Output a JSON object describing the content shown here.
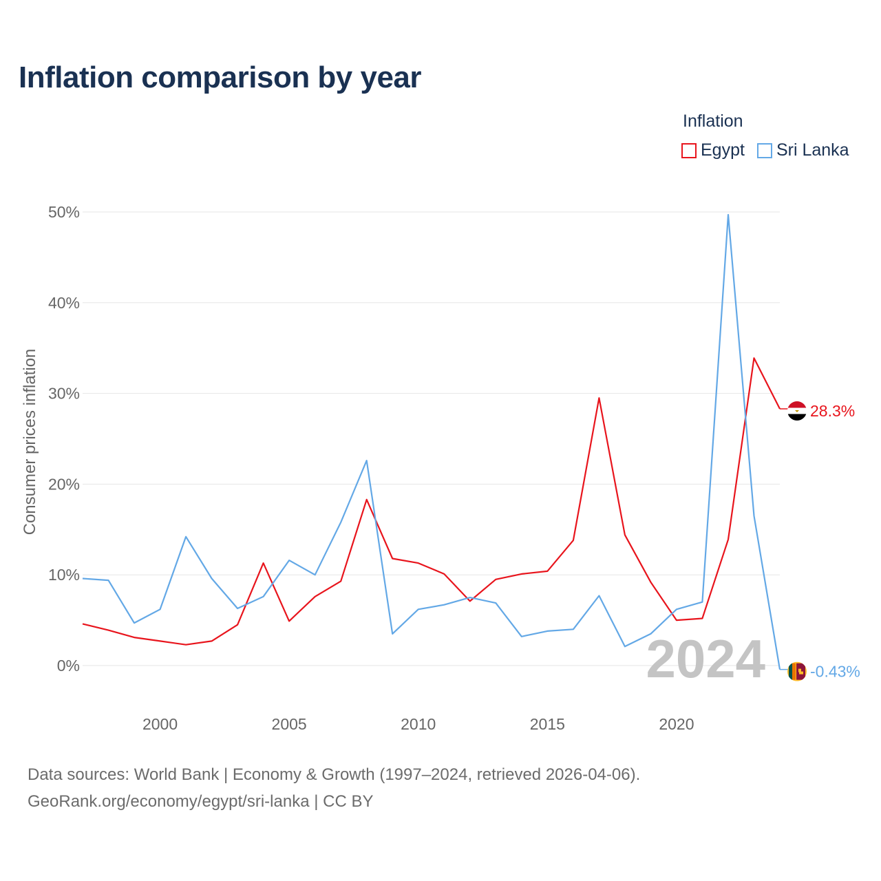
{
  "title": "Inflation comparison by year",
  "legend": {
    "title": "Inflation",
    "items": [
      {
        "name": "Egypt",
        "color": "#e8141c"
      },
      {
        "name": "Sri Lanka",
        "color": "#63a8e6"
      }
    ]
  },
  "footer": {
    "line1": "Data sources: World Bank | Economy & Growth (1997–2024, retrieved 2026-04-06).",
    "line2": "GeoRank.org/economy/egypt/sri-lanka | CC BY"
  },
  "chart_data": {
    "type": "line",
    "title": "Inflation comparison by year",
    "xlabel": "",
    "ylabel": "Consumer prices inflation",
    "xlim": [
      1997,
      2024
    ],
    "ylim": [
      0,
      50
    ],
    "x_ticks": [
      2000,
      2005,
      2010,
      2015,
      2020
    ],
    "y_ticks": [
      0,
      10,
      20,
      30,
      40,
      50
    ],
    "y_tick_labels": [
      "0%",
      "10%",
      "20%",
      "30%",
      "40%",
      "50%"
    ],
    "grid": true,
    "watermark_year": "2024",
    "x": [
      1997,
      1998,
      1999,
      2000,
      2001,
      2002,
      2003,
      2004,
      2005,
      2006,
      2007,
      2008,
      2009,
      2010,
      2011,
      2012,
      2013,
      2014,
      2015,
      2016,
      2017,
      2018,
      2019,
      2020,
      2021,
      2022,
      2023,
      2024
    ],
    "series": [
      {
        "name": "Egypt",
        "color": "#e8141c",
        "end_label": "28.3%",
        "values": [
          4.6,
          3.9,
          3.1,
          2.7,
          2.3,
          2.7,
          4.5,
          11.3,
          4.9,
          7.6,
          9.3,
          18.3,
          11.8,
          11.3,
          10.1,
          7.1,
          9.5,
          10.1,
          10.4,
          13.8,
          29.5,
          14.4,
          9.2,
          5.0,
          5.2,
          13.9,
          33.9,
          28.3
        ]
      },
      {
        "name": "Sri Lanka",
        "color": "#63a8e6",
        "end_label": "-0.43%",
        "values": [
          9.6,
          9.4,
          4.7,
          6.2,
          14.2,
          9.6,
          6.3,
          7.6,
          11.6,
          10.0,
          15.8,
          22.6,
          3.5,
          6.2,
          6.7,
          7.5,
          6.9,
          3.2,
          3.8,
          4.0,
          7.7,
          2.1,
          3.5,
          6.2,
          7.0,
          49.7,
          16.5,
          -0.43
        ]
      }
    ]
  }
}
